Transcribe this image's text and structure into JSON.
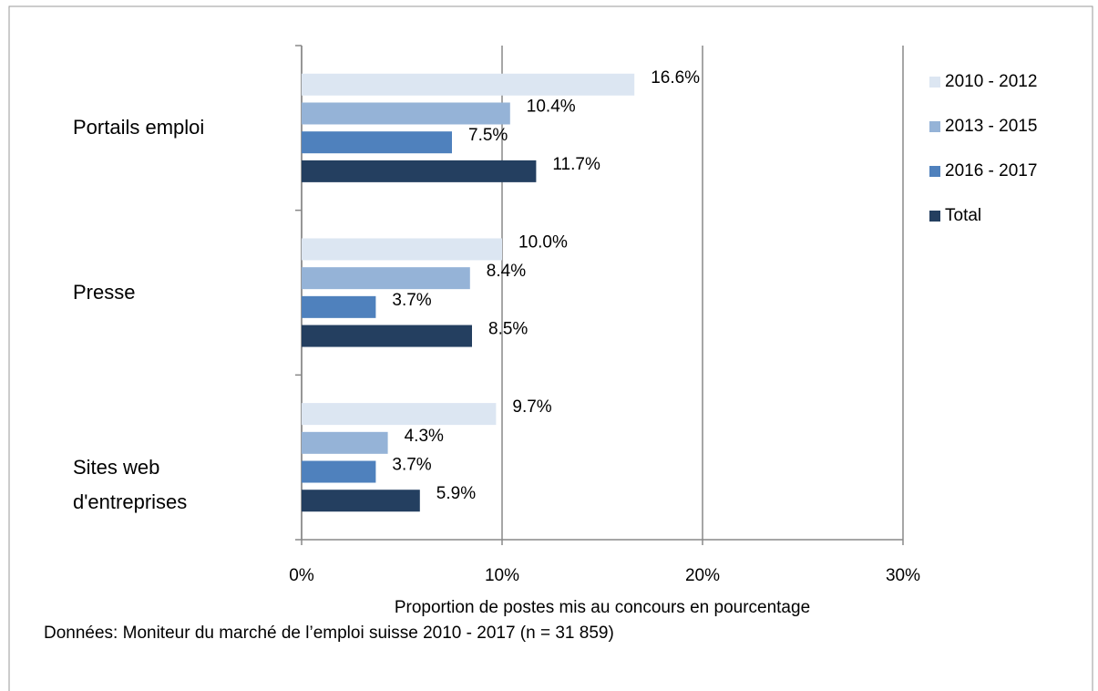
{
  "chart_data": {
    "type": "barh",
    "categories": [
      "Portails emploi",
      "Presse",
      "Sites web d'entreprises"
    ],
    "series": [
      {
        "name": "2010 - 2012",
        "color": "#dce6f2",
        "values": [
          16.6,
          10.0,
          9.7
        ],
        "value_labels": [
          "16.6%",
          "10.0%",
          "9.7%"
        ]
      },
      {
        "name": "2013 - 2015",
        "color": "#95b3d7",
        "values": [
          10.4,
          8.4,
          4.3
        ],
        "value_labels": [
          "10.4%",
          "8.4%",
          "4.3%"
        ]
      },
      {
        "name": "2016 - 2017",
        "color": "#4f81bd",
        "values": [
          7.5,
          3.7,
          3.7
        ],
        "value_labels": [
          "7.5%",
          "3.7%",
          "3.7%"
        ]
      },
      {
        "name": "Total",
        "color": "#243f60",
        "values": [
          11.7,
          8.5,
          5.9
        ],
        "value_labels": [
          "11.7%",
          "8.5%",
          "5.9%"
        ]
      }
    ],
    "xlim": [
      0,
      30
    ],
    "xticks": [
      {
        "value": 0,
        "label": "0%"
      },
      {
        "value": 10,
        "label": "10%"
      },
      {
        "value": 20,
        "label": "20%"
      },
      {
        "value": 30,
        "label": "30%"
      }
    ],
    "xlabel": "Proportion de postes mis au concours en pourcentage",
    "note": "Données: Moniteur du marché de l’emploi suisse 2010 - 2017 (n = 31 859)",
    "grid": true,
    "legend": "right"
  }
}
